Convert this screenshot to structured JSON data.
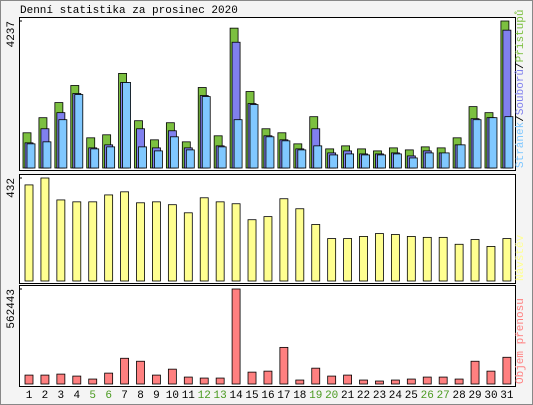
{
  "chart_data": {
    "type": "bar",
    "title": "Denní statistika za prosinec 2020",
    "categories": [
      "1",
      "2",
      "3",
      "4",
      "5",
      "6",
      "7",
      "8",
      "9",
      "10",
      "11",
      "12",
      "13",
      "14",
      "15",
      "16",
      "17",
      "18",
      "19",
      "20",
      "21",
      "22",
      "23",
      "24",
      "25",
      "26",
      "27",
      "28",
      "29",
      "30",
      "31"
    ],
    "category_colors": [
      "#000",
      "#000",
      "#000",
      "#000",
      "#4a9a20",
      "#4a9a20",
      "#000",
      "#000",
      "#000",
      "#000",
      "#000",
      "#4a9a20",
      "#4a9a20",
      "#000",
      "#000",
      "#000",
      "#000",
      "#000",
      "#4a9a20",
      "#4a9a20",
      "#000",
      "#000",
      "#000",
      "#000",
      "#000",
      "#4a9a20",
      "#4a9a20",
      "#000",
      "#000",
      "#000",
      "#000"
    ],
    "legend_separator": "/",
    "panels": [
      {
        "type": "bar",
        "ylim": [
          0,
          4237
        ],
        "yticks": [
          4237
        ],
        "series": [
          {
            "name": "Přístupů",
            "color": "#7cc040",
            "values": [
              1015,
              1450,
              1885,
              2378,
              870,
              957,
              2726,
              1363,
              812,
              1305,
              754,
              2320,
              928,
              4031,
              2204,
              1131,
              1015,
              696,
              1479,
              551,
              638,
              551,
              493,
              580,
              522,
              609,
              580,
              870,
              1769,
              1595,
              4237
            ]
          },
          {
            "name": "Souborů",
            "color": "#8080ee",
            "values": [
              725,
              1131,
              1595,
              2146,
              580,
              667,
              2465,
              1131,
              580,
              1073,
              580,
              2088,
              638,
              3625,
              1856,
              928,
              812,
              551,
              1131,
              435,
              493,
              406,
              406,
              435,
              348,
              493,
              435,
              667,
              1421,
              1450,
              3973
            ]
          },
          {
            "name": "Stránek",
            "color": "#80c8ff",
            "values": [
              696,
              754,
              1392,
              2117,
              551,
              609,
              2465,
              609,
              493,
              899,
              522,
              2059,
              609,
              1392,
              1827,
              899,
              783,
              522,
              638,
              377,
              406,
              377,
              377,
              406,
              290,
              435,
              435,
              667,
              1392,
              1450,
              1479
            ]
          }
        ]
      },
      {
        "type": "bar",
        "ylim": [
          0,
          432
        ],
        "yticks": [
          432
        ],
        "series": [
          {
            "name": "Návštěv",
            "color": "#ffff90",
            "values": [
              403,
              432,
              340,
              332,
              332,
              361,
              374,
              328,
              332,
              320,
              286,
              349,
              332,
              324,
              257,
              270,
              345,
              303,
              237,
              178,
              178,
              187,
              199,
              195,
              187,
              183,
              183,
              154,
              174,
              145,
              178
            ]
          }
        ]
      },
      {
        "type": "bar",
        "ylim": [
          0,
          562443
        ],
        "yticks": [
          562443
        ],
        "series": [
          {
            "name": "Objem přenosu",
            "color": "#ff8080",
            "values": [
              52731,
              52731,
              58590,
              46872,
              29295,
              64449,
              152334,
              134757,
              52731,
              87885,
              41013,
              35154,
              35154,
              562443,
              70308,
              76167,
              216783,
              23436,
              93744,
              46872,
              52731,
              23436,
              17577,
              23436,
              29295,
              41013,
              41013,
              29295,
              134757,
              76167,
              158193
            ]
          }
        ]
      }
    ]
  }
}
